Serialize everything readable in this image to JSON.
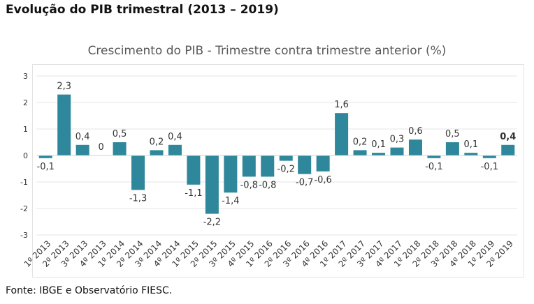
{
  "heading": "Evolução do PIB trimestral (2013 – 2019)",
  "source": "Fonte: IBGE e Observatório FIESC.",
  "chart_data": {
    "type": "bar",
    "title": "Crescimento do PIB - Trimestre contra trimestre anterior (%)",
    "xlabel": "",
    "ylabel": "",
    "ylim": [
      -3,
      3
    ],
    "yticks": [
      3,
      2,
      1,
      0,
      -1,
      -2,
      -3
    ],
    "grid": true,
    "bar_color": "#2e879b",
    "categories": [
      "1º 2013",
      "2º 2013",
      "3º 2013",
      "4º 2013",
      "1º 2014",
      "2º 2014",
      "3º 2014",
      "4º 2014",
      "1º 2015",
      "2º 2015",
      "3º 2015",
      "4º 2015",
      "1º 2016",
      "2º 2016",
      "3º 2016",
      "4º 2016",
      "1º 2017",
      "2º 2017",
      "3º 2017",
      "4º 2017",
      "1º 2018",
      "2º 2018",
      "3º 2018",
      "4º 2018",
      "1º 2019",
      "2º 2019"
    ],
    "values": [
      -0.1,
      2.3,
      0.4,
      0,
      0.5,
      -1.3,
      0.2,
      0.4,
      -1.1,
      -2.2,
      -1.4,
      -0.8,
      -0.8,
      -0.2,
      -0.7,
      -0.6,
      1.6,
      0.2,
      0.1,
      0.3,
      0.6,
      -0.1,
      0.5,
      0.1,
      -0.1,
      0.4
    ],
    "data_labels": [
      "-0,1",
      "2,3",
      "0,4",
      "0",
      "0,5",
      "-1,3",
      "0,2",
      "0,4",
      "-1,1",
      "-2,2",
      "-1,4",
      "-0,8",
      "-0,8",
      "-0,2",
      "-0,7",
      "-0,6",
      "1,6",
      "0,2",
      "0,1",
      "0,3",
      "0,6",
      "-0,1",
      "0,5",
      "0,1",
      "-0,1",
      "0,4"
    ],
    "highlight_last_label": true
  }
}
